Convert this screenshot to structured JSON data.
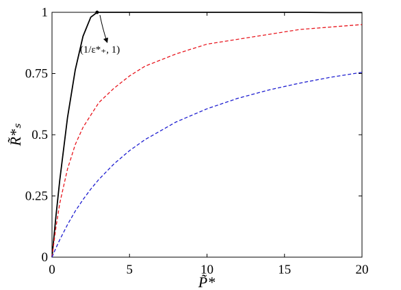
{
  "chart_data": {
    "type": "line",
    "xlabel": "P̃*",
    "ylabel": "R̃*ₛ",
    "annotation": "(1/ε*₊, 1)",
    "x": [
      0,
      0.25,
      0.5,
      1,
      1.5,
      2,
      2.5,
      2.91,
      3,
      4,
      5,
      6,
      8,
      10,
      12,
      14,
      16,
      18,
      20
    ],
    "series": [
      {
        "color": "#000000",
        "dash": "solid",
        "values": [
          0,
          0.165,
          0.314,
          0.57,
          0.765,
          0.902,
          0.98,
          1,
          1,
          1,
          1,
          1,
          1,
          1,
          1,
          1,
          1,
          0.999,
          0.999
        ]
      },
      {
        "color": "#e8141c",
        "dash": "dashed",
        "values": [
          0,
          0.12,
          0.22,
          0.36,
          0.46,
          0.53,
          0.58,
          0.62,
          0.63,
          0.69,
          0.74,
          0.78,
          0.83,
          0.87,
          0.89,
          0.91,
          0.93,
          0.94,
          0.95
        ]
      },
      {
        "color": "#1c1cd0",
        "dash": "dashed",
        "values": [
          0,
          0.037,
          0.071,
          0.133,
          0.188,
          0.235,
          0.278,
          0.309,
          0.316,
          0.381,
          0.435,
          0.48,
          0.552,
          0.606,
          0.649,
          0.683,
          0.711,
          0.735,
          0.755
        ]
      }
    ],
    "xlim": [
      0,
      20
    ],
    "xticks": [
      0,
      5,
      10,
      15,
      20
    ],
    "ylim": [
      0,
      1
    ],
    "yticks": [
      0,
      0.25,
      0.5,
      0.75,
      1
    ],
    "grid": false
  }
}
